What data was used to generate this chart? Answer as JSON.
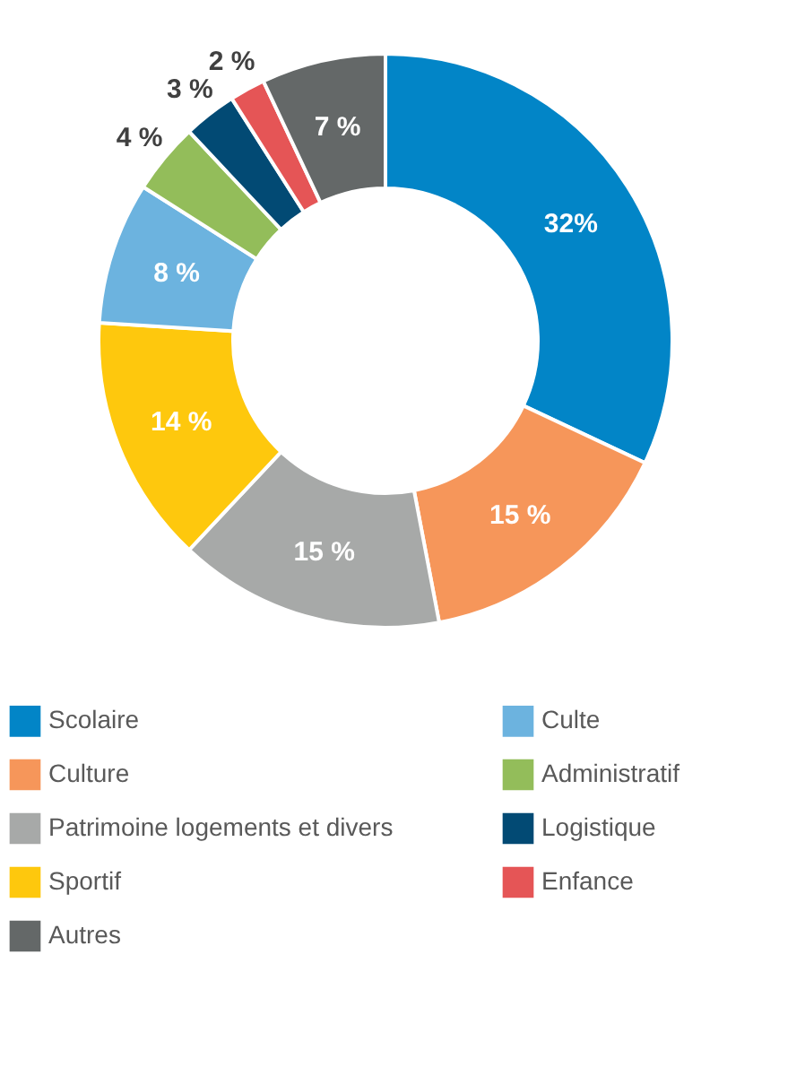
{
  "chart_data": {
    "type": "donut",
    "categories": [
      "Scolaire",
      "Culture",
      "Patrimoine logements et divers",
      "Sportif",
      "Culte",
      "Administratif",
      "Logistique",
      "Enfance",
      "Autres"
    ],
    "values": [
      32,
      15,
      15,
      14,
      8,
      4,
      3,
      2,
      7
    ],
    "value_labels": [
      "32%",
      "15 %",
      "15 %",
      "14 %",
      "8 %",
      "4 %",
      "3 %",
      "2 %",
      "7 %"
    ],
    "colors": [
      "#0285c7",
      "#f6965a",
      "#a7a9a8",
      "#fec80d",
      "#6cb3df",
      "#93bd5a",
      "#024a74",
      "#e55556",
      "#646868"
    ],
    "legend": "bottom"
  }
}
